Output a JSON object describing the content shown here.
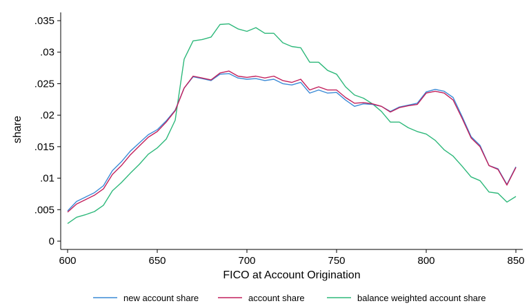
{
  "chart_data": {
    "type": "line",
    "xlabel": "FICO at Account Origination",
    "ylabel": "share",
    "xlim": [
      600,
      850
    ],
    "ylim": [
      0,
      0.035
    ],
    "xticks": [
      600,
      650,
      700,
      750,
      800,
      850
    ],
    "xtick_labels": [
      "600",
      "650",
      "700",
      "750",
      "800",
      "850"
    ],
    "yticks": [
      0,
      0.005,
      0.01,
      0.015,
      0.02,
      0.025,
      0.03,
      0.035
    ],
    "ytick_labels": [
      "0",
      ".005",
      ".01",
      ".015",
      ".02",
      ".025",
      ".03",
      ".035"
    ],
    "grid": false,
    "legend_position": "bottom",
    "x": [
      600,
      605,
      610,
      615,
      620,
      625,
      630,
      635,
      640,
      645,
      650,
      655,
      660,
      665,
      670,
      675,
      680,
      685,
      690,
      695,
      700,
      705,
      710,
      715,
      720,
      725,
      730,
      735,
      740,
      745,
      750,
      755,
      760,
      765,
      770,
      775,
      780,
      785,
      790,
      795,
      800,
      805,
      810,
      815,
      820,
      825,
      830,
      835,
      840,
      845,
      850
    ],
    "series": [
      {
        "name": "new account share",
        "color": "#3a8ad6",
        "values": [
          0.0048,
          0.0063,
          0.007,
          0.0077,
          0.0088,
          0.0112,
          0.0126,
          0.0143,
          0.0156,
          0.0169,
          0.0177,
          0.0191,
          0.0208,
          0.0243,
          0.0261,
          0.0258,
          0.0255,
          0.0265,
          0.0266,
          0.0259,
          0.0257,
          0.0258,
          0.0255,
          0.0257,
          0.025,
          0.0248,
          0.0252,
          0.0235,
          0.024,
          0.0235,
          0.0236,
          0.0224,
          0.0214,
          0.0218,
          0.0217,
          0.0214,
          0.0206,
          0.0213,
          0.0216,
          0.0219,
          0.0237,
          0.0241,
          0.0238,
          0.0228,
          0.0198,
          0.0166,
          0.0152,
          0.012,
          0.0115,
          0.009,
          0.0118
        ]
      },
      {
        "name": "account share",
        "color": "#c21f5b",
        "values": [
          0.0046,
          0.0059,
          0.0066,
          0.0073,
          0.0083,
          0.0106,
          0.012,
          0.0137,
          0.0151,
          0.0165,
          0.0174,
          0.0189,
          0.0207,
          0.0243,
          0.0262,
          0.0259,
          0.0256,
          0.0267,
          0.027,
          0.0262,
          0.026,
          0.0262,
          0.0259,
          0.0262,
          0.0255,
          0.0252,
          0.0257,
          0.024,
          0.0245,
          0.024,
          0.024,
          0.0228,
          0.0219,
          0.022,
          0.0218,
          0.0214,
          0.0205,
          0.0212,
          0.0215,
          0.0217,
          0.0235,
          0.0238,
          0.0235,
          0.0224,
          0.0195,
          0.0164,
          0.015,
          0.012,
          0.0114,
          0.0089,
          0.0117
        ]
      },
      {
        "name": "balance weighted account share",
        "color": "#2db87a",
        "values": [
          0.0028,
          0.0038,
          0.0042,
          0.0047,
          0.0057,
          0.008,
          0.0093,
          0.0108,
          0.0122,
          0.0138,
          0.0148,
          0.0162,
          0.0192,
          0.0289,
          0.0318,
          0.032,
          0.0324,
          0.0344,
          0.0345,
          0.0337,
          0.0333,
          0.0339,
          0.033,
          0.033,
          0.0315,
          0.0309,
          0.0307,
          0.0284,
          0.0284,
          0.0271,
          0.0265,
          0.0245,
          0.0232,
          0.0227,
          0.0218,
          0.0206,
          0.0189,
          0.0189,
          0.018,
          0.0174,
          0.017,
          0.016,
          0.0145,
          0.0135,
          0.0119,
          0.0102,
          0.0096,
          0.0078,
          0.0076,
          0.0062,
          0.0071
        ]
      }
    ]
  }
}
